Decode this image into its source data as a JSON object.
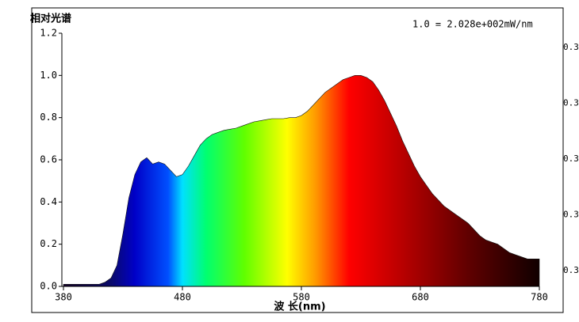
{
  "chart_data": {
    "type": "area",
    "title": "相对光谱",
    "annotation": "1.0 = 2.028e+002mW/nm",
    "x_label": "波 长(nm)",
    "x": [
      380,
      385,
      390,
      395,
      400,
      405,
      410,
      415,
      420,
      425,
      430,
      435,
      440,
      445,
      450,
      455,
      460,
      465,
      470,
      475,
      480,
      485,
      490,
      495,
      500,
      505,
      510,
      515,
      520,
      525,
      530,
      535,
      540,
      545,
      550,
      555,
      560,
      565,
      570,
      575,
      580,
      585,
      590,
      595,
      600,
      605,
      610,
      615,
      620,
      625,
      630,
      635,
      640,
      645,
      650,
      655,
      660,
      665,
      670,
      675,
      680,
      685,
      690,
      695,
      700,
      705,
      710,
      715,
      720,
      725,
      730,
      735,
      740,
      745,
      750,
      755,
      760,
      765,
      770,
      775,
      780
    ],
    "values": [
      0.01,
      0.01,
      0.01,
      0.01,
      0.01,
      0.01,
      0.01,
      0.02,
      0.04,
      0.1,
      0.25,
      0.42,
      0.53,
      0.59,
      0.61,
      0.58,
      0.59,
      0.58,
      0.55,
      0.52,
      0.53,
      0.57,
      0.62,
      0.67,
      0.7,
      0.72,
      0.73,
      0.74,
      0.745,
      0.75,
      0.76,
      0.77,
      0.78,
      0.785,
      0.79,
      0.795,
      0.795,
      0.795,
      0.8,
      0.8,
      0.81,
      0.83,
      0.86,
      0.89,
      0.92,
      0.94,
      0.96,
      0.98,
      0.99,
      1.0,
      1.0,
      0.99,
      0.97,
      0.93,
      0.88,
      0.82,
      0.76,
      0.69,
      0.63,
      0.57,
      0.52,
      0.48,
      0.44,
      0.41,
      0.38,
      0.36,
      0.34,
      0.32,
      0.3,
      0.27,
      0.24,
      0.22,
      0.21,
      0.2,
      0.18,
      0.16,
      0.15,
      0.14,
      0.13,
      0.13,
      0.13
    ],
    "xlim": [
      380,
      780
    ],
    "xticks": [
      380,
      480,
      580,
      680,
      780
    ],
    "ylim": [
      0,
      1.2
    ],
    "yticks": [
      {
        "value": 0,
        "label": "0.0"
      },
      0.2,
      0.4,
      0.6,
      0.8,
      {
        "value": 1,
        "label": "1.0"
      },
      {
        "value": 1.2,
        "label": "1.2"
      }
    ],
    "side_labels": [
      "0.3",
      "0.3",
      "0.3",
      "0.3",
      "0.3"
    ],
    "grid": false
  }
}
